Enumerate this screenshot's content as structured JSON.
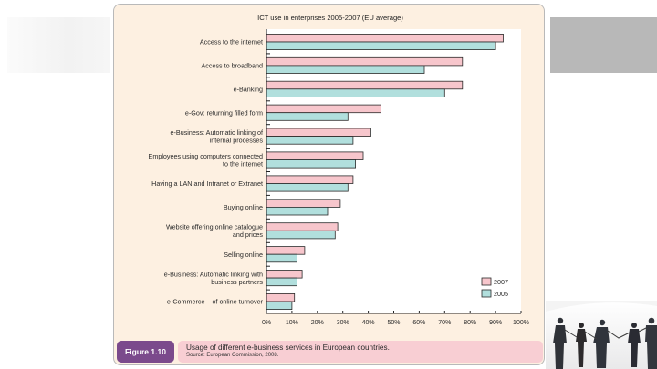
{
  "decor": {
    "panel_color": "#fdf0e1",
    "right_band_color": "#b8b8b8",
    "figure_label_color": "#7b4a8c",
    "caption_color": "#f8ced3"
  },
  "chart_data": {
    "type": "bar",
    "orientation": "horizontal",
    "title": "ICT use in enterprises 2005-2007 (EU average)",
    "xlabel": "",
    "ylabel": "",
    "xlim": [
      0,
      100
    ],
    "xticks": [
      0,
      10,
      20,
      30,
      40,
      50,
      60,
      70,
      80,
      90,
      100
    ],
    "xtick_labels": [
      "0%",
      "10%",
      "20%",
      "30%",
      "40%",
      "50%",
      "60%",
      "70%",
      "80%",
      "90%",
      "100%"
    ],
    "grid": false,
    "legend": "bottom-right",
    "categories": [
      [
        "Access to the internet"
      ],
      [
        "Access to broadband"
      ],
      [
        "e-Banking"
      ],
      [
        "e-Gov: returning filled form"
      ],
      [
        "e-Business: Automatic linking of",
        "internal processes"
      ],
      [
        "Employees using computers connected",
        "to the internet"
      ],
      [
        "Having a LAN and Intranet or Extranet"
      ],
      [
        "Buying online"
      ],
      [
        "Website offering online catalogue",
        "and prices"
      ],
      [
        "Selling online"
      ],
      [
        "e-Business: Automatic linking with",
        "business partners"
      ],
      [
        "e-Commerce – of online turnover"
      ]
    ],
    "series": [
      {
        "name": "2007",
        "color": "#f7c6cc",
        "values": [
          93,
          77,
          77,
          45,
          41,
          38,
          34,
          29,
          28,
          15,
          14,
          11
        ]
      },
      {
        "name": "2005",
        "color": "#b1dfdd",
        "values": [
          90,
          62,
          70,
          32,
          34,
          35,
          32,
          24,
          27,
          12,
          12,
          10
        ]
      }
    ]
  },
  "caption": {
    "figure_label": "Figure 1.10",
    "text": "Usage of different e-business services in European countries.",
    "source": "Source: European Commission, 2008."
  }
}
